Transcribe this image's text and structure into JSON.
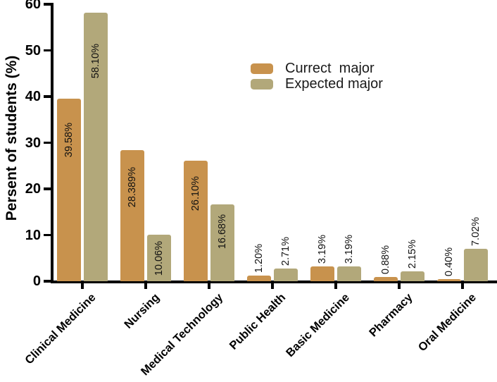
{
  "figure": {
    "background": "#ffffff"
  },
  "chart_data": {
    "type": "bar",
    "title": "",
    "ylabel": "Persent of students (%)",
    "xlabel": "",
    "ylim": [
      0,
      60
    ],
    "yticks": [
      0,
      10,
      20,
      30,
      40,
      50,
      60
    ],
    "grid": false,
    "legend_position": "upper-right-of-plot-area",
    "categories": [
      "Clinical Medicine",
      "Nursing",
      "Medical Technology",
      "Public Health",
      "Basic Medicine",
      "Pharmacy",
      "Oral Medicine"
    ],
    "series": [
      {
        "name": "Currect  major",
        "color": "#C8924D",
        "values": [
          39.58,
          28.389,
          26.1,
          1.2,
          3.19,
          0.88,
          0.4
        ],
        "labels": [
          "39.58%",
          "28.389%",
          "26.10%",
          "1.20%",
          "3.19%",
          "0.88%",
          "0.40%"
        ]
      },
      {
        "name": "Expected major",
        "color": "#B2A87A",
        "values": [
          58.1,
          10.06,
          16.68,
          2.71,
          3.19,
          2.15,
          7.02
        ],
        "labels": [
          "58.10%",
          "10.06%",
          "16.68%",
          "2.71%",
          "3.19%",
          "2.15%",
          "7.02%"
        ]
      }
    ],
    "value_label_color": "#111111",
    "axis_color": "#000000"
  }
}
